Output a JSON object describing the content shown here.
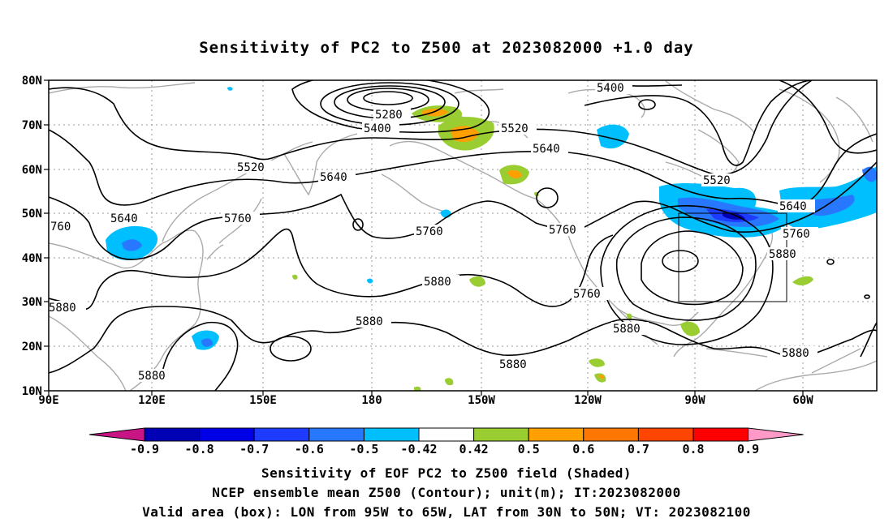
{
  "title": "Sensitivity of PC2 to Z500 at 2023082000 +1.0 day",
  "lat_labels": [
    "80N",
    "70N",
    "60N",
    "50N",
    "40N",
    "30N",
    "20N",
    "10N"
  ],
  "lon_labels": [
    "90E",
    "120E",
    "150E",
    "180",
    "150W",
    "120W",
    "90W",
    "60W"
  ],
  "contour_labels": {
    "c5400a": "5400",
    "c5400b": "5400",
    "c5280": "5280",
    "c5520a": "5520",
    "c5520b": "5520",
    "c5520c": "5520",
    "c5640a": "5640",
    "c5640b": "5640",
    "c5640c": "5640",
    "c5640d": "5640",
    "c5760a": "5760",
    "c5760b": "5760",
    "c5760c": "5760",
    "c5760d": "5760",
    "c5760e": "5760",
    "c5760f": "760",
    "c5880a": "5880",
    "c5880b": "5880",
    "c5880c": "5880",
    "c5880d": "5880",
    "c5880e": "5880",
    "c5880f": "5880",
    "c5880g": "5880",
    "c5880h": "5880"
  },
  "colorbar": {
    "labels": [
      "-0.9",
      "-0.8",
      "-0.7",
      "-0.6",
      "-0.5",
      "-0.42",
      "0.42",
      "0.5",
      "0.6",
      "0.7",
      "0.8",
      "0.9"
    ],
    "colors": [
      "#0000b4",
      "#0000e6",
      "#1e3cff",
      "#2878ff",
      "#00bfff",
      "#ffffff",
      "#9acd32",
      "#ff9f00",
      "#ff7700",
      "#ff4500",
      "#ff0000"
    ],
    "low_arrow": "#c71585",
    "high_arrow": "#ff9ac8"
  },
  "caption": {
    "line1": "Sensitivity of EOF PC2 to Z500 field (Shaded)",
    "line2": "NCEP ensemble mean Z500 (Contour); unit(m); IT:2023082000",
    "line3": "Valid area (box): LON from 95W to 65W, LAT from 30N to 50N; VT: 2023082100"
  }
}
